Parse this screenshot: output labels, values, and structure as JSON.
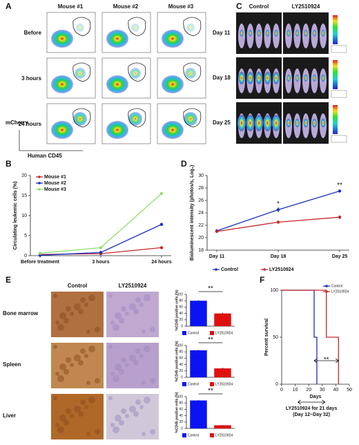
{
  "panels": [
    "A",
    "B",
    "C",
    "D",
    "E",
    "F"
  ],
  "panel_a": {
    "columns": [
      "Mouse #1",
      "Mouse #2",
      "Mouse #3"
    ],
    "rows": [
      "Before",
      "3 hours",
      "24 hours"
    ],
    "y_label": "mCherry",
    "x_label": "Human CD45"
  },
  "panel_c": {
    "columns": [
      "Control",
      "LY2510924"
    ],
    "rows": [
      "Day  11",
      "Day 18",
      "Day 25"
    ]
  },
  "panel_e": {
    "columns": [
      "Control",
      "LY2510924"
    ],
    "rows": [
      "Bone marrow",
      "Spleen",
      "Liver"
    ]
  },
  "chart_data": [
    {
      "type": "line",
      "categories": [
        "Before treatment",
        "3 hours",
        "24 hours"
      ],
      "y_label": "Circulating leukemic cells (%)",
      "ylim": [
        0,
        20
      ],
      "yticks": [
        0,
        5,
        10,
        15,
        20
      ],
      "legend": "upper-left",
      "series": [
        {
          "name": "Mouse #1",
          "color": "#c62828",
          "values": [
            0.3,
            0.5,
            2
          ]
        },
        {
          "name": "Mouse #2",
          "color": "#1a2fbf",
          "values": [
            0.1,
            0.8,
            7.8
          ]
        },
        {
          "name": "Mouse #3",
          "color": "#8ee06a",
          "values": [
            0.6,
            2,
            15.5
          ]
        }
      ]
    },
    {
      "type": "line",
      "categories": [
        "Day 11",
        "Day 18",
        "Day 25"
      ],
      "y_label": "Bioluminescent intensity (photos/s, Log₂)",
      "ylim": [
        18,
        30
      ],
      "yticks": [
        18,
        20,
        22,
        24,
        26,
        28,
        30
      ],
      "legend": "bottom",
      "annotations": [
        "*",
        "**"
      ],
      "series": [
        {
          "name": "Control",
          "color": "#1a2fbf",
          "values": [
            21.1,
            24.5,
            27.5
          ],
          "errors": [
            0.2,
            0.4,
            0.2
          ]
        },
        {
          "name": "LY2510924",
          "color": "#c62828",
          "values": [
            21.0,
            22.5,
            23.3
          ],
          "errors": [
            0.2,
            0.2,
            0.3
          ]
        }
      ]
    },
    {
      "type": "bar",
      "categories": [
        "Control",
        "LY2510924"
      ],
      "values": [
        80,
        40
      ],
      "errors": [
        1.5,
        2.5
      ],
      "colors": [
        "#0a14f0",
        "#e01010"
      ],
      "y_label": "%CD45 positive cells (%)",
      "ylim": [
        0,
        100
      ],
      "yticks": [
        0,
        20,
        40,
        60,
        80,
        100
      ],
      "annotation": "**"
    },
    {
      "type": "bar",
      "categories": [
        "Control",
        "LY2510924"
      ],
      "values": [
        85,
        28
      ],
      "errors": [
        1.5,
        2
      ],
      "colors": [
        "#0a14f0",
        "#e01010"
      ],
      "y_label": "%CD45 positive cells (%)",
      "ylim": [
        0,
        100
      ],
      "yticks": [
        0,
        20,
        40,
        60,
        80,
        100
      ],
      "annotation": "**"
    },
    {
      "type": "bar",
      "categories": [
        "Control",
        "LY2510924"
      ],
      "values": [
        88,
        10
      ],
      "errors": [
        1,
        1
      ],
      "colors": [
        "#0a14f0",
        "#e01010"
      ],
      "y_label": "%CD45 positive cells (%)",
      "ylim": [
        0,
        100
      ],
      "yticks": [
        0,
        20,
        40,
        60,
        80,
        100
      ],
      "annotation": "**"
    },
    {
      "type": "line",
      "step": true,
      "x_label": "Days",
      "y_label": "Percent survival",
      "xlim": [
        0,
        50
      ],
      "xticks": [
        0,
        10,
        20,
        30,
        40,
        50
      ],
      "ylim": [
        0,
        100
      ],
      "yticks": [
        0,
        50,
        100
      ],
      "legend": "upper-right",
      "annotations": [
        "**",
        "LY2510924 for 21 days",
        "(Day 12~Day 32)"
      ],
      "series": [
        {
          "name": "Control",
          "color": "#1a2fbf",
          "x": [
            0,
            24,
            26
          ],
          "values": [
            100,
            50,
            0
          ]
        },
        {
          "name": "LY2510924",
          "color": "#c62828",
          "x": [
            0,
            33,
            42
          ],
          "values": [
            100,
            50,
            0
          ]
        }
      ]
    }
  ]
}
